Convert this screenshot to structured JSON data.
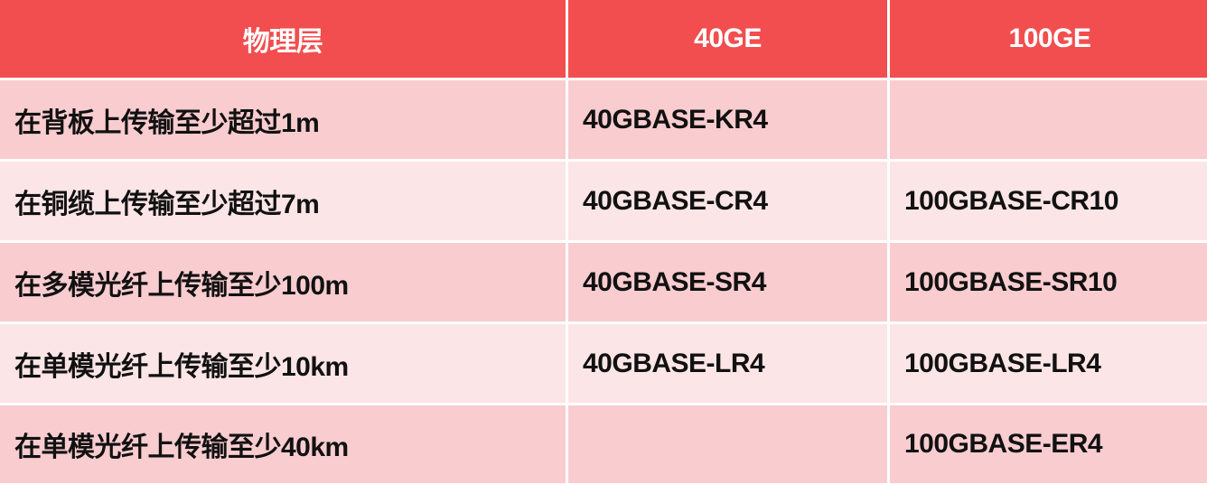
{
  "table": {
    "header": [
      "物理层",
      "40GE",
      "100GE"
    ],
    "rows": [
      [
        "在背板上传输至少超过1m",
        "40GBASE-KR4",
        null
      ],
      [
        "在铜缆上传输至少超过7m",
        "40GBASE-CR4",
        "100GBASE-CR10"
      ],
      [
        "在多模光纤上传输至少100m",
        "40GBASE-SR4",
        "100GBASE-SR10"
      ],
      [
        "在单模光纤上传输至少10km",
        "40GBASE-LR4",
        "100GBASE-LR4"
      ],
      [
        "在单模光纤上传输至少40km",
        null,
        "100GBASE-ER4"
      ]
    ]
  }
}
